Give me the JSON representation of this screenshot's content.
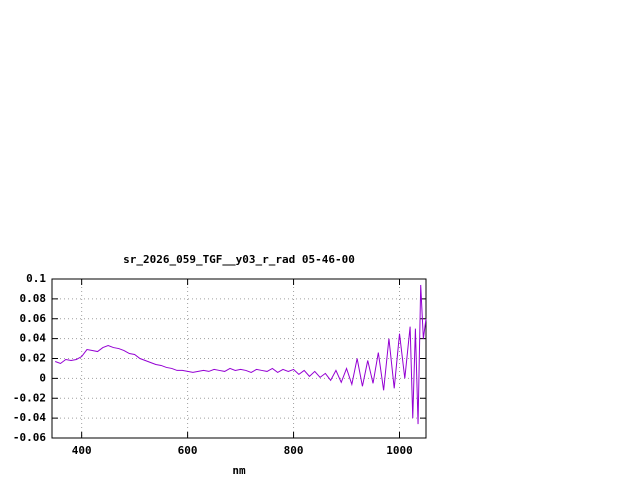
{
  "chart_data": {
    "type": "line",
    "title": "sr_2026_059_TGF__y03_r_rad 05-46-00",
    "x_label": "nm",
    "x": [
      350,
      360,
      370,
      380,
      390,
      400,
      410,
      420,
      430,
      440,
      450,
      460,
      470,
      480,
      490,
      500,
      510,
      520,
      530,
      540,
      550,
      560,
      570,
      580,
      590,
      600,
      610,
      620,
      630,
      640,
      650,
      660,
      670,
      680,
      690,
      700,
      710,
      720,
      730,
      740,
      750,
      760,
      770,
      780,
      790,
      800,
      810,
      820,
      830,
      840,
      850,
      860,
      870,
      880,
      890,
      900,
      910,
      920,
      930,
      940,
      950,
      960,
      970,
      980,
      990,
      1000,
      1010,
      1020,
      1025,
      1030,
      1035,
      1040,
      1045,
      1050
    ],
    "values": [
      0.017,
      0.015,
      0.019,
      0.018,
      0.019,
      0.022,
      0.029,
      0.028,
      0.027,
      0.031,
      0.033,
      0.031,
      0.03,
      0.028,
      0.025,
      0.024,
      0.02,
      0.018,
      0.016,
      0.014,
      0.013,
      0.011,
      0.01,
      0.008,
      0.008,
      0.007,
      0.006,
      0.007,
      0.008,
      0.007,
      0.009,
      0.008,
      0.007,
      0.01,
      0.008,
      0.009,
      0.008,
      0.006,
      0.009,
      0.008,
      0.007,
      0.01,
      0.006,
      0.009,
      0.007,
      0.009,
      0.004,
      0.008,
      0.002,
      0.007,
      0.001,
      0.005,
      -0.002,
      0.008,
      -0.004,
      0.01,
      -0.006,
      0.02,
      -0.008,
      0.018,
      -0.005,
      0.026,
      -0.012,
      0.04,
      -0.01,
      0.045,
      0.0,
      0.052,
      -0.04,
      0.05,
      -0.046,
      0.094,
      0.04,
      0.06
    ],
    "color": "#9400d3",
    "xlim": [
      344,
      1050
    ],
    "xticks": [
      400,
      600,
      800,
      1000
    ],
    "ylim": [
      -0.06,
      0.1
    ],
    "yticks": [
      -0.06,
      -0.04,
      -0.02,
      0,
      0.02,
      0.04,
      0.06,
      0.08,
      0.1
    ],
    "grid": true
  }
}
